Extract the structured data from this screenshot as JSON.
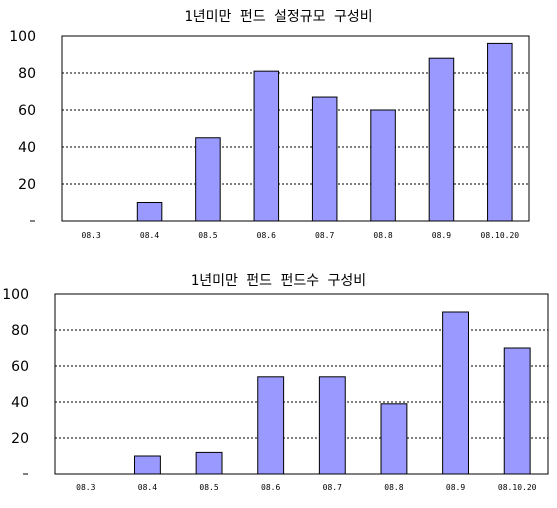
{
  "chart_data": [
    {
      "type": "bar",
      "title": "1년미만 펀드 설정규모 구성비",
      "categories": [
        "08.3",
        "08.4",
        "08.5",
        "08.6",
        "08.7",
        "08.8",
        "08.9",
        "08.10.20"
      ],
      "values": [
        0,
        10,
        45,
        81,
        67,
        60,
        88,
        96
      ],
      "ylim": [
        0,
        100
      ],
      "yticks": [
        "",
        "20",
        "40",
        "60",
        "80",
        "100"
      ],
      "grid": true,
      "bar_color": "#9999ff"
    },
    {
      "type": "bar",
      "title": "1년미만 펀드 펀드수 구성비",
      "categories": [
        "08.3",
        "08.4",
        "08.5",
        "08.6",
        "08.7",
        "08.8",
        "08.9",
        "08.10.20"
      ],
      "values": [
        0,
        10,
        12,
        54,
        54,
        39,
        90,
        70
      ],
      "ylim": [
        0,
        100
      ],
      "yticks": [
        "",
        "20",
        "40",
        "60",
        "80",
        "100"
      ],
      "grid": true,
      "bar_color": "#9999ff"
    }
  ]
}
